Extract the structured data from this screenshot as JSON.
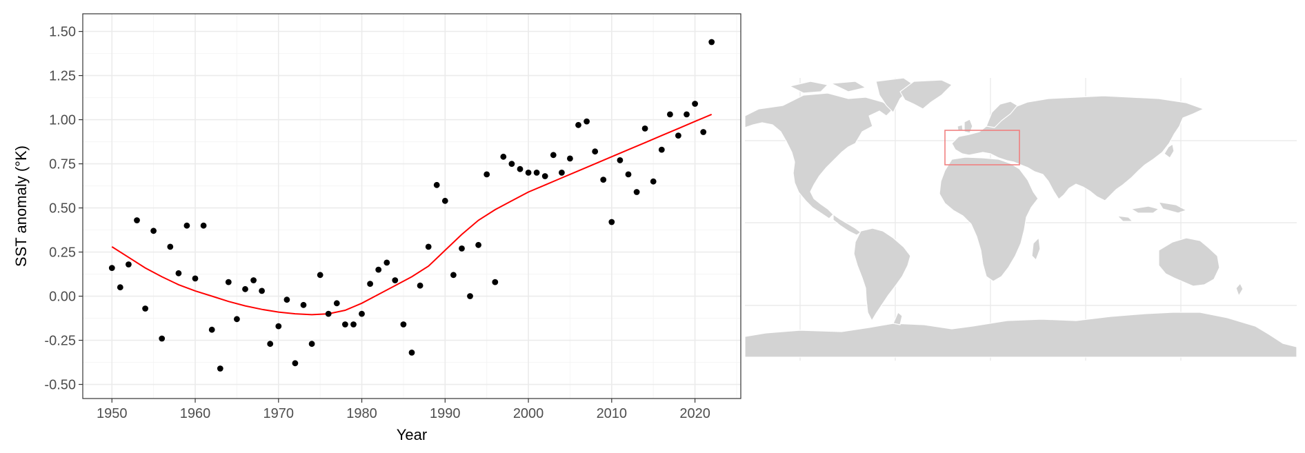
{
  "chart_data": {
    "type": "scatter",
    "xlabel": "Year",
    "ylabel": "SST anomaly (°K)",
    "xlim": [
      1946.5,
      2025.5
    ],
    "ylim": [
      -0.58,
      1.6
    ],
    "x_ticks": [
      1950,
      1960,
      1970,
      1980,
      1990,
      2000,
      2010,
      2020
    ],
    "y_ticks": [
      -0.5,
      -0.25,
      0,
      0.25,
      0.5,
      0.75,
      1.0,
      1.25,
      1.5
    ],
    "y_tick_labels": [
      "-0.50",
      "-0.25",
      "0.00",
      "0.25",
      "0.50",
      "0.75",
      "1.00",
      "1.25",
      "1.50"
    ],
    "grid": true,
    "legend": "none",
    "colors": {
      "points": "#000000",
      "trend": "#ff0000",
      "panel_border": "#333333",
      "grid_major": "#ebebeb",
      "grid_minor": "#f5f5f5"
    },
    "series": [
      {
        "kind": "points",
        "x": [
          1950,
          1951,
          1952,
          1953,
          1954,
          1955,
          1956,
          1957,
          1958,
          1959,
          1960,
          1961,
          1962,
          1963,
          1964,
          1965,
          1966,
          1967,
          1968,
          1969,
          1970,
          1971,
          1972,
          1973,
          1974,
          1975,
          1976,
          1977,
          1978,
          1979,
          1980,
          1981,
          1982,
          1983,
          1984,
          1985,
          1986,
          1987,
          1988,
          1989,
          1990,
          1991,
          1992,
          1993,
          1994,
          1995,
          1996,
          1997,
          1998,
          1999,
          2000,
          2001,
          2002,
          2003,
          2004,
          2005,
          2006,
          2007,
          2008,
          2009,
          2010,
          2011,
          2012,
          2013,
          2014,
          2015,
          2016,
          2017,
          2018,
          2019,
          2020,
          2021,
          2022
        ],
        "y": [
          0.16,
          0.05,
          0.18,
          0.43,
          -0.07,
          0.37,
          -0.24,
          0.28,
          0.13,
          0.4,
          0.1,
          0.4,
          -0.19,
          -0.41,
          0.08,
          -0.13,
          0.04,
          0.09,
          0.03,
          -0.27,
          -0.17,
          -0.02,
          -0.38,
          -0.05,
          -0.27,
          0.12,
          -0.1,
          -0.04,
          -0.16,
          -0.16,
          -0.1,
          0.07,
          0.15,
          0.19,
          0.09,
          -0.16,
          -0.32,
          0.06,
          0.28,
          0.63,
          0.54,
          0.12,
          0.27,
          0.0,
          0.29,
          0.69,
          0.08,
          0.79,
          0.75,
          0.72,
          0.7,
          0.7,
          0.68,
          0.8,
          0.7,
          0.78,
          0.97,
          0.99,
          0.82,
          0.66,
          0.42,
          0.77,
          0.69,
          0.59,
          0.95,
          0.65,
          0.83,
          1.03,
          0.91,
          1.03,
          1.09,
          0.93,
          1.44
        ]
      },
      {
        "kind": "smooth",
        "x": [
          1950,
          1952,
          1954,
          1956,
          1958,
          1960,
          1962,
          1964,
          1966,
          1968,
          1970,
          1972,
          1974,
          1976,
          1978,
          1980,
          1982,
          1984,
          1986,
          1988,
          1990,
          1992,
          1994,
          1996,
          1998,
          2000,
          2002,
          2004,
          2006,
          2008,
          2010,
          2012,
          2014,
          2016,
          2018,
          2020,
          2022
        ],
        "y": [
          0.28,
          0.22,
          0.16,
          0.11,
          0.065,
          0.03,
          0.0,
          -0.03,
          -0.055,
          -0.075,
          -0.09,
          -0.1,
          -0.105,
          -0.1,
          -0.08,
          -0.04,
          0.01,
          0.06,
          0.11,
          0.17,
          0.26,
          0.35,
          0.43,
          0.49,
          0.54,
          0.59,
          0.63,
          0.67,
          0.71,
          0.75,
          0.79,
          0.83,
          0.87,
          0.91,
          0.95,
          0.99,
          1.03
        ]
      }
    ]
  },
  "map": {
    "type": "world-map",
    "colors": {
      "land": "#d3d3d3",
      "borders": "#ffffff",
      "grid": "#ebebeb",
      "highlight_box": "#f08080"
    }
  }
}
